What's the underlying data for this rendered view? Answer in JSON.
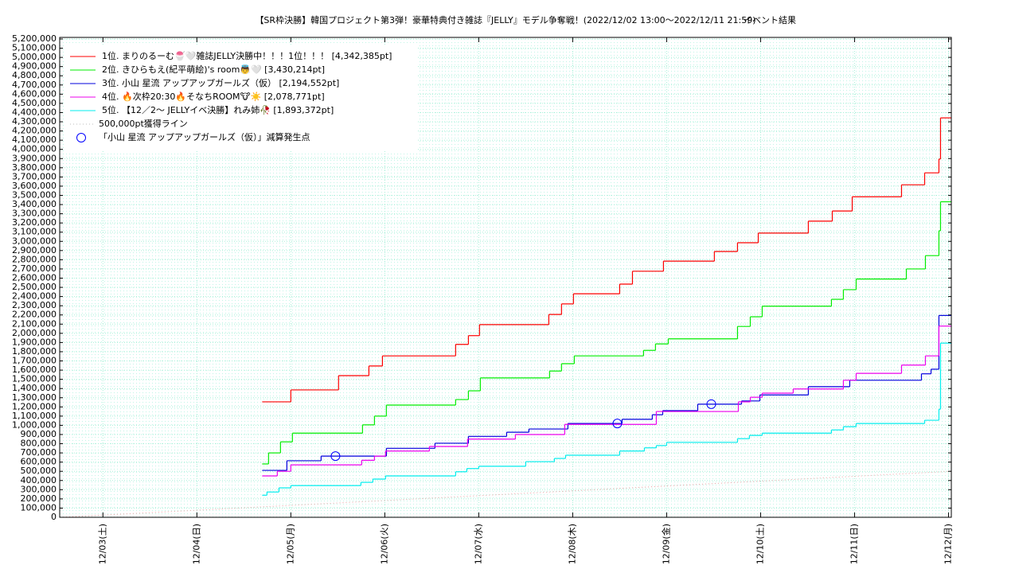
{
  "chart_data": {
    "type": "line",
    "title": "【SR枠決勝】韓国プロジェクト第3弾！豪華特典付き雑誌『JELLY』モデル争奪戦！(2022/12/02 13:00～2022/12/11 21:59)",
    "subtitle": "イベント結果",
    "xlim": [
      -0.46,
      9.03
    ],
    "xticks": [
      {
        "value": 0,
        "label": "12/03(土)"
      },
      {
        "value": 1,
        "label": "12/04(日)"
      },
      {
        "value": 2,
        "label": "12/05(月)"
      },
      {
        "value": 3,
        "label": "12/06(火)"
      },
      {
        "value": 4,
        "label": "12/07(水)"
      },
      {
        "value": 5,
        "label": "12/08(木)"
      },
      {
        "value": 6,
        "label": "12/09(金)"
      },
      {
        "value": 7,
        "label": "12/10(土)"
      },
      {
        "value": 8,
        "label": "12/11(日)"
      },
      {
        "value": 9,
        "label": "12/12(月)"
      }
    ],
    "ylim": [
      0,
      5200000
    ],
    "yticks": [
      0,
      {
        "value": 100000,
        "label": "100,000"
      },
      {
        "value": 200000,
        "label": "200,000"
      },
      {
        "value": 300000,
        "label": "300,000"
      },
      {
        "value": 400000,
        "label": "400,000"
      },
      {
        "value": 500000,
        "label": "500,000"
      },
      {
        "value": 600000,
        "label": "600,000"
      },
      {
        "value": 700000,
        "label": "700,000"
      },
      {
        "value": 800000,
        "label": "800,000"
      },
      {
        "value": 900000,
        "label": "900,000"
      },
      {
        "value": 1000000,
        "label": "1,000,000"
      },
      {
        "value": 1100000,
        "label": "1,100,000"
      },
      {
        "value": 1200000,
        "label": "1,200,000"
      },
      {
        "value": 1300000,
        "label": "1,300,000"
      },
      {
        "value": 1400000,
        "label": "1,400,000"
      },
      {
        "value": 1500000,
        "label": "1,500,000"
      },
      {
        "value": 1600000,
        "label": "1,600,000"
      },
      {
        "value": 1700000,
        "label": "1,700,000"
      },
      {
        "value": 1800000,
        "label": "1,800,000"
      },
      {
        "value": 1900000,
        "label": "1,900,000"
      },
      {
        "value": 2000000,
        "label": "2,000,000"
      },
      {
        "value": 2100000,
        "label": "2,100,000"
      },
      {
        "value": 2200000,
        "label": "2,200,000"
      },
      {
        "value": 2300000,
        "label": "2,300,000"
      },
      {
        "value": 2400000,
        "label": "2,400,000"
      },
      {
        "value": 2500000,
        "label": "2,500,000"
      },
      {
        "value": 2600000,
        "label": "2,600,000"
      },
      {
        "value": 2700000,
        "label": "2,700,000"
      },
      {
        "value": 2800000,
        "label": "2,800,000"
      },
      {
        "value": 2900000,
        "label": "2,900,000"
      },
      {
        "value": 3000000,
        "label": "3,000,000"
      },
      {
        "value": 3100000,
        "label": "3,100,000"
      },
      {
        "value": 3200000,
        "label": "3,200,000"
      },
      {
        "value": 3300000,
        "label": "3,300,000"
      },
      {
        "value": 3400000,
        "label": "3,400,000"
      },
      {
        "value": 3500000,
        "label": "3,500,000"
      },
      {
        "value": 3600000,
        "label": "3,600,000"
      },
      {
        "value": 3700000,
        "label": "3,700,000"
      },
      {
        "value": 3800000,
        "label": "3,800,000"
      },
      {
        "value": 3900000,
        "label": "3,900,000"
      },
      {
        "value": 4000000,
        "label": "4,000,000"
      },
      {
        "value": 4100000,
        "label": "4,100,000"
      },
      {
        "value": 4200000,
        "label": "4,200,000"
      },
      {
        "value": 4300000,
        "label": "4,300,000"
      },
      {
        "value": 4400000,
        "label": "4,400,000"
      },
      {
        "value": 4500000,
        "label": "4,500,000"
      },
      {
        "value": 4600000,
        "label": "4,600,000"
      },
      {
        "value": 4700000,
        "label": "4,700,000"
      },
      {
        "value": 4800000,
        "label": "4,800,000"
      },
      {
        "value": 4900000,
        "label": "4,900,000"
      },
      {
        "value": 5000000,
        "label": "5,000,000"
      },
      {
        "value": 5100000,
        "label": "5,100,000"
      },
      {
        "value": 5200000,
        "label": "5,200,000"
      }
    ],
    "grid": true,
    "legend": "upper left",
    "series": [
      {
        "name": "1位. まりのるーむ🍧🤍雑誌JELLY決勝中！！！1位！！！ [4,342,385pt]",
        "color": "#ff0000",
        "drawstyle": "steps-post",
        "x": [
          1.695,
          2.0,
          2.508,
          2.831,
          2.975,
          3.754,
          3.89,
          4.008,
          4.746,
          4.881,
          5.008,
          5.5,
          5.636,
          5.966,
          6.508,
          6.754,
          6.975,
          7.508,
          7.763,
          7.975,
          8.5,
          8.746,
          8.898,
          8.915
        ],
        "values": [
          1255000,
          1385000,
          1540000,
          1645000,
          1755000,
          1880000,
          1975000,
          2095000,
          2205000,
          2320000,
          2430000,
          2535000,
          2675000,
          2785000,
          2890000,
          2985000,
          3090000,
          3220000,
          3330000,
          3485000,
          3615000,
          3745000,
          3895000,
          4342385
        ]
      },
      {
        "name": "2位. きひらもえ(紀平萌絵)'s room👼🤍 [3,430,214pt]",
        "color": "#00ee00",
        "drawstyle": "steps-post",
        "x": [
          1.695,
          1.763,
          1.89,
          2.017,
          2.763,
          2.89,
          3.017,
          3.754,
          3.89,
          4.017,
          4.754,
          4.881,
          5.017,
          5.754,
          5.881,
          6.017,
          6.754,
          6.89,
          7.017,
          7.754,
          7.881,
          8.017,
          8.551,
          8.754,
          8.898,
          8.915
        ],
        "values": [
          580000,
          700000,
          820000,
          915000,
          1005000,
          1100000,
          1220000,
          1280000,
          1375000,
          1515000,
          1590000,
          1670000,
          1755000,
          1815000,
          1885000,
          1940000,
          2075000,
          2180000,
          2295000,
          2370000,
          2475000,
          2590000,
          2700000,
          2845000,
          3115000,
          3430214
        ]
      },
      {
        "name": "3位. 小山 星流 アップアップガールズ（仮） [2,194,552pt]",
        "color": "#0000dd",
        "drawstyle": "steps-post",
        "x": [
          1.695,
          1.958,
          2.322,
          3.017,
          3.534,
          3.89,
          4.297,
          4.534,
          4.949,
          5.525,
          5.847,
          5.958,
          6.331,
          6.797,
          6.992,
          7.508,
          7.949,
          8.712,
          8.814,
          8.898
        ],
        "values": [
          510000,
          615000,
          665000,
          750000,
          805000,
          880000,
          925000,
          960000,
          1020000,
          1065000,
          1115000,
          1160000,
          1230000,
          1265000,
          1330000,
          1420000,
          1490000,
          1560000,
          1610000,
          2194552
        ]
      },
      {
        "name": "4位. 🔥次枠20:30🔥そなちROOM🐮☀️ [2,078,771pt]",
        "color": "#ee00ee",
        "drawstyle": "steps-post",
        "x": [
          1.695,
          1.856,
          2.0,
          2.754,
          2.89,
          3.008,
          3.475,
          3.881,
          4.39,
          4.915,
          5.89,
          6.763,
          6.89,
          7.017,
          7.347,
          7.881,
          8.017,
          8.5,
          8.754,
          8.898
        ],
        "values": [
          450000,
          500000,
          570000,
          620000,
          665000,
          720000,
          770000,
          850000,
          900000,
          1010000,
          1150000,
          1255000,
          1305000,
          1350000,
          1395000,
          1490000,
          1565000,
          1655000,
          1755000,
          2078771
        ]
      },
      {
        "name": "5位. 【12／2～ JELLYイベ決勝】れみ姉🥀 [1,893,372pt]",
        "color": "#00eeee",
        "drawstyle": "steps-post",
        "x": [
          1.695,
          1.746,
          1.873,
          2.0,
          2.746,
          2.873,
          3.008,
          3.754,
          3.873,
          4.0,
          4.5,
          4.805,
          4.924,
          5.5,
          5.763,
          5.89,
          6.0,
          6.754,
          6.881,
          7.017,
          7.754,
          7.881,
          8.017,
          8.746,
          8.898,
          8.915
        ],
        "values": [
          240000,
          275000,
          320000,
          345000,
          380000,
          415000,
          450000,
          495000,
          530000,
          555000,
          605000,
          640000,
          675000,
          720000,
          755000,
          780000,
          815000,
          855000,
          890000,
          915000,
          950000,
          985000,
          1020000,
          1055000,
          1175000,
          1893372
        ]
      },
      {
        "name": "500,000pt獲得ライン",
        "color": "#e8a0a0",
        "drawstyle": "dotted",
        "x": [
          -0.46,
          9.03
        ],
        "values": [
          0,
          500000
        ]
      }
    ],
    "markers": {
      "name": "「小山 星流 アップアップガールズ（仮）」減算発生点",
      "color": "#0000ff",
      "x": [
        2.475,
        5.475,
        6.475
      ],
      "values": [
        665000,
        1020000,
        1230000
      ]
    }
  }
}
